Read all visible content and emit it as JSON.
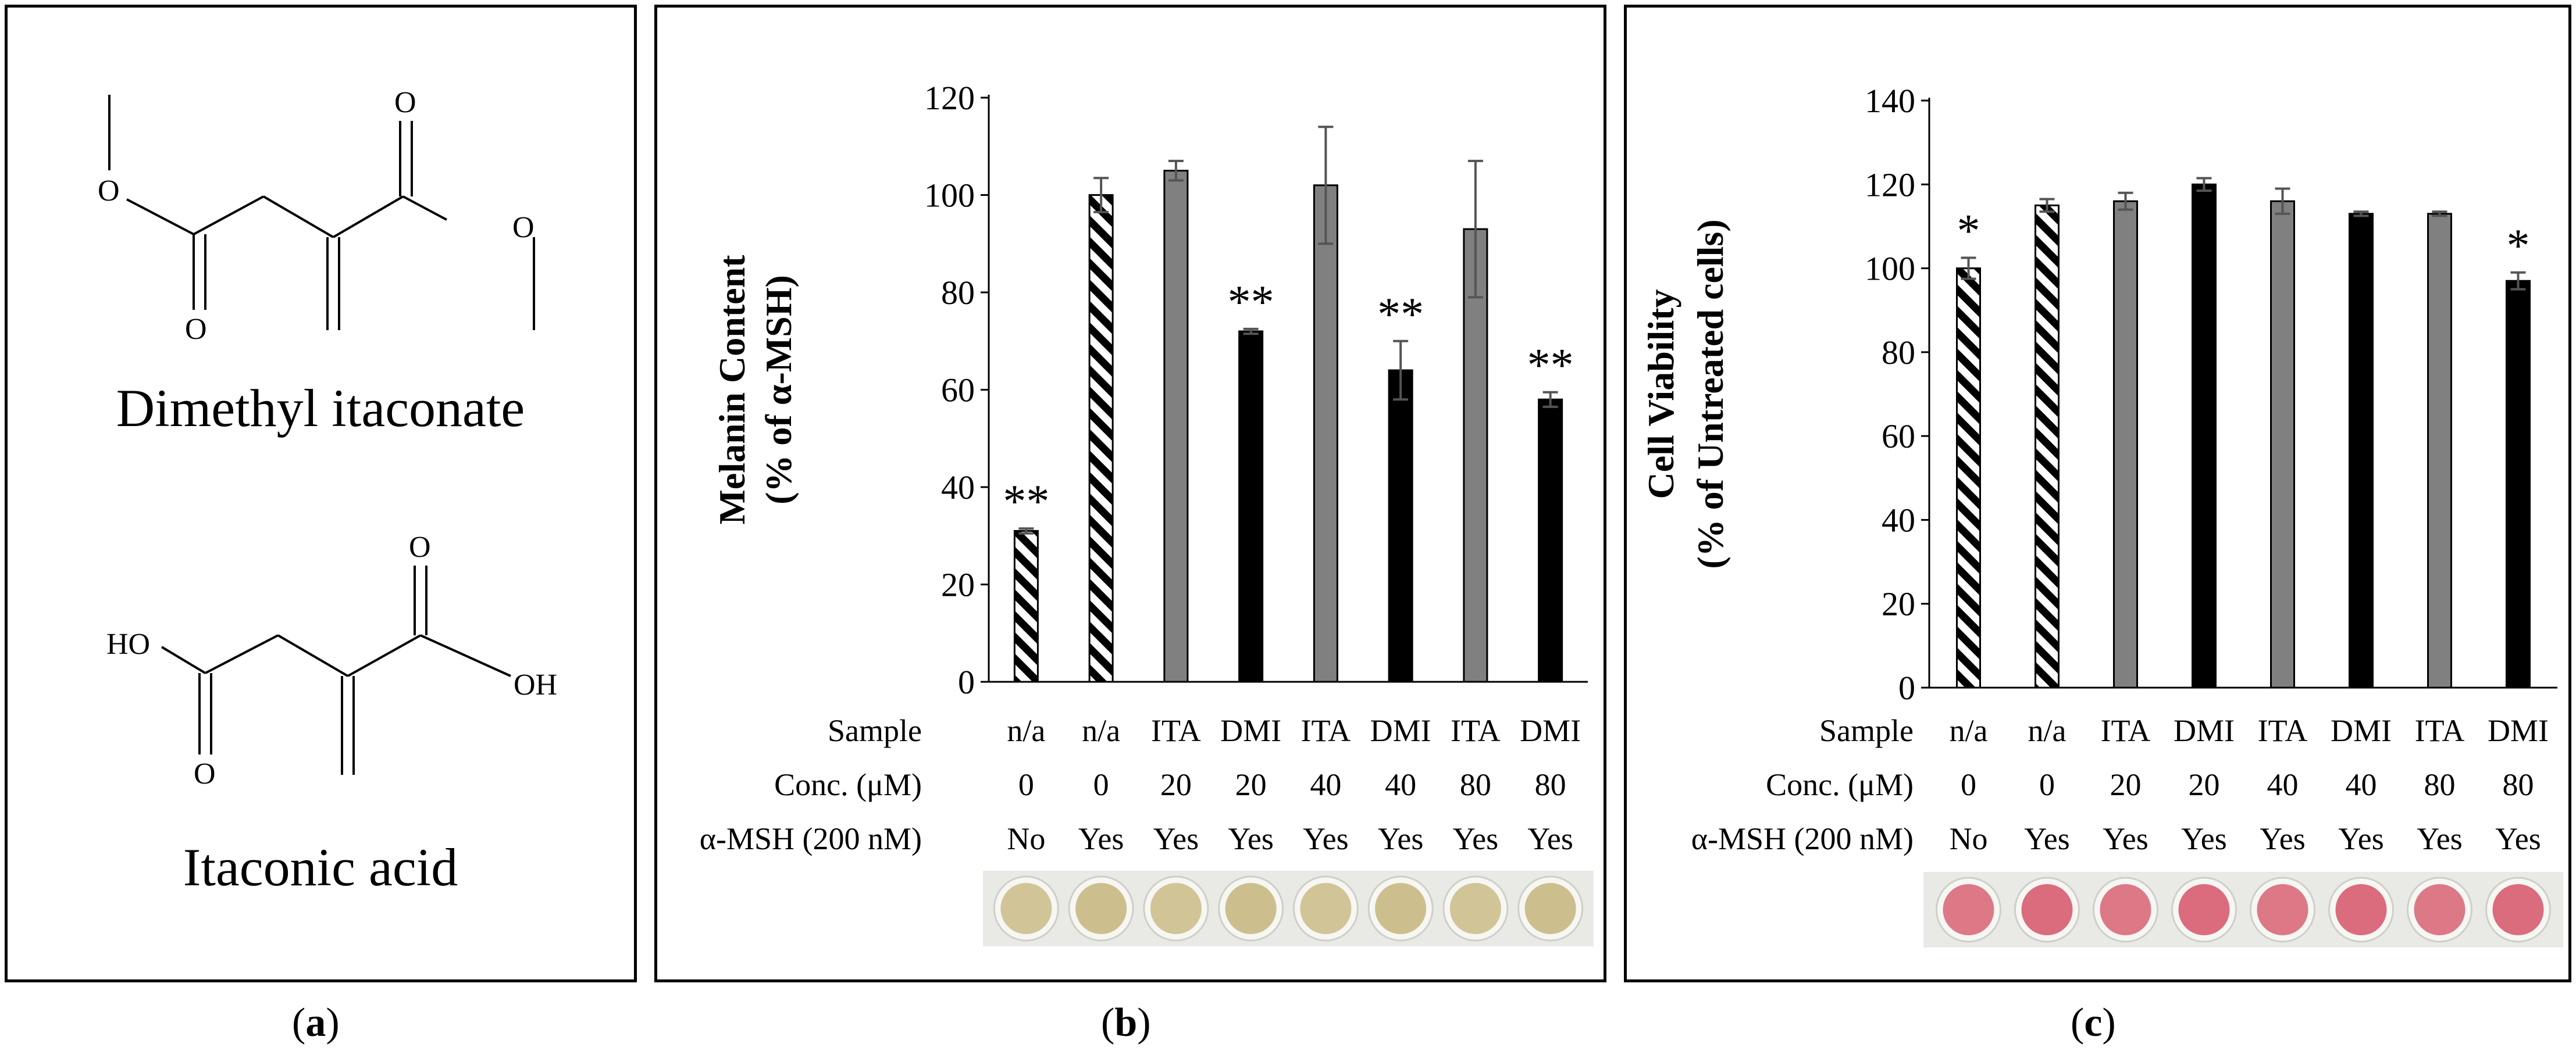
{
  "colors": {
    "hatch": "#000000",
    "ita": "#808080",
    "dmi": "#000000",
    "melanin_well": "#b39a4a",
    "viability_well": "#c8102e"
  },
  "panel_a": {
    "structure1_name": "Dimethyl itaconate",
    "structure2_name": "Itaconic acid",
    "atom_O": "O",
    "atom_HO": "HO",
    "atom_OH": "OH",
    "caption_open": "(",
    "caption_letter": "a",
    "caption_close": ")"
  },
  "panel_b": {
    "caption_open": "(",
    "caption_letter": "b",
    "caption_close": ")"
  },
  "panel_c": {
    "caption_open": "(",
    "caption_letter": "c",
    "caption_close": ")"
  },
  "table": {
    "row_labels": [
      "Sample",
      "Conc. (μM)",
      "α-MSH (200 nM)"
    ],
    "samples": [
      "n/a",
      "n/a",
      "ITA",
      "DMI",
      "ITA",
      "DMI",
      "ITA",
      "DMI"
    ],
    "concs": [
      "0",
      "0",
      "20",
      "20",
      "40",
      "40",
      "80",
      "80"
    ],
    "msh": [
      "No",
      "Yes",
      "Yes",
      "Yes",
      "Yes",
      "Yes",
      "Yes",
      "Yes"
    ]
  },
  "chart_data": [
    {
      "type": "bar",
      "panel": "b",
      "ylabel_line1": "Melanin Content",
      "ylabel_line2": "(% of α-MSH)",
      "ylim": [
        0,
        120
      ],
      "yticks": [
        0,
        20,
        40,
        60,
        80,
        100,
        120
      ],
      "categories": [
        "n/a 0 No",
        "n/a 0 Yes",
        "ITA 20",
        "DMI 20",
        "ITA 40",
        "DMI 40",
        "ITA 80",
        "DMI 80"
      ],
      "values": [
        31,
        100,
        105,
        72,
        102,
        64,
        93,
        58
      ],
      "errors": [
        0.5,
        3.5,
        2,
        0.5,
        12,
        6,
        14,
        1.5
      ],
      "styles": [
        "hatch",
        "hatch",
        "ita",
        "dmi",
        "ita",
        "dmi",
        "ita",
        "dmi"
      ],
      "significance": [
        "**",
        "",
        "",
        "**",
        "",
        "**",
        "",
        "**"
      ]
    },
    {
      "type": "bar",
      "panel": "c",
      "ylabel_line1": "Cell Viability",
      "ylabel_line2": "(% of Untreated cells)",
      "ylim": [
        0,
        140
      ],
      "yticks": [
        0,
        20,
        40,
        60,
        80,
        100,
        120,
        140
      ],
      "categories": [
        "n/a 0 No",
        "n/a 0 Yes",
        "ITA 20",
        "DMI 20",
        "ITA 40",
        "DMI 40",
        "ITA 80",
        "DMI 80"
      ],
      "values": [
        100,
        115,
        116,
        120,
        116,
        113,
        113,
        97
      ],
      "errors": [
        2.5,
        1.5,
        2,
        1.5,
        3,
        0.5,
        0.5,
        2
      ],
      "styles": [
        "hatch",
        "hatch",
        "ita",
        "dmi",
        "ita",
        "dmi",
        "ita",
        "dmi"
      ],
      "significance": [
        "*",
        "",
        "",
        "",
        "",
        "",
        "",
        "*"
      ]
    }
  ]
}
